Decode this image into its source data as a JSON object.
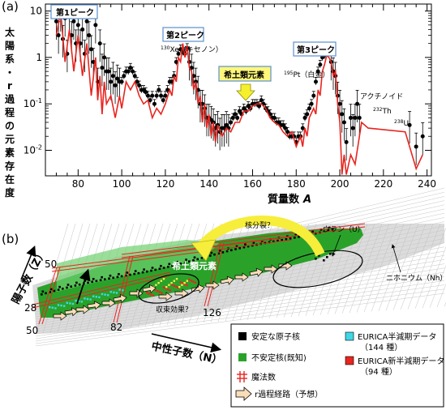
{
  "chart_data": [
    {
      "type": "scatter",
      "panel": "(a)",
      "xlabel": "質量数",
      "xlabel_var": "A",
      "ylabel": "太陽系・r過程の元素存在度",
      "xlim": [
        65,
        242
      ],
      "ylim_log10": [
        -2.55,
        1.15
      ],
      "log_y": true,
      "x_ticks": [
        80,
        100,
        120,
        140,
        160,
        180,
        200,
        220,
        240
      ],
      "y_ticks": [
        {
          "value": 10,
          "label": "10"
        },
        {
          "value": 1,
          "label": "1"
        },
        {
          "value": 0.1,
          "label": "10",
          "sup": "-1"
        },
        {
          "value": 0.01,
          "label": "10",
          "sup": "-2"
        }
      ],
      "grid": false,
      "series": [
        {
          "role": "observed",
          "marker": "black-dot-with-errorbars",
          "color": "#000000",
          "points": [
            [
              70,
              6
            ],
            [
              71,
              3
            ],
            [
              72,
              9
            ],
            [
              73,
              2.5
            ],
            [
              74,
              7
            ],
            [
              75,
              1.2
            ],
            [
              76,
              8
            ],
            [
              77,
              3
            ],
            [
              78,
              6
            ],
            [
              79,
              2
            ],
            [
              80,
              5
            ],
            [
              81,
              2
            ],
            [
              82,
              4
            ],
            [
              83,
              1.2
            ],
            [
              84,
              6
            ],
            [
              85,
              3
            ],
            [
              86,
              1.5
            ],
            [
              87,
              0.8
            ],
            [
              88,
              5
            ],
            [
              89,
              0.3
            ],
            [
              90,
              2
            ],
            [
              91,
              0.6
            ],
            [
              92,
              1
            ],
            [
              93,
              0.5
            ],
            [
              94,
              0.5
            ],
            [
              95,
              0.3
            ],
            [
              96,
              0.4
            ],
            [
              97,
              0.25
            ],
            [
              98,
              0.35
            ],
            [
              99,
              0.3
            ],
            [
              100,
              0.3
            ],
            [
              101,
              0.4
            ],
            [
              102,
              0.5
            ],
            [
              103,
              0.5
            ],
            [
              104,
              0.6
            ],
            [
              105,
              0.5
            ],
            [
              106,
              0.4
            ],
            [
              107,
              0.3
            ],
            [
              108,
              0.25
            ],
            [
              109,
              0.2
            ],
            [
              110,
              0.2
            ],
            [
              111,
              0.18
            ],
            [
              112,
              0.15
            ],
            [
              113,
              0.12
            ],
            [
              114,
              0.15
            ],
            [
              115,
              0.1
            ],
            [
              116,
              0.15
            ],
            [
              117,
              0.2
            ],
            [
              118,
              0.15
            ],
            [
              119,
              0.12
            ],
            [
              120,
              0.15
            ],
            [
              121,
              0.2
            ],
            [
              122,
              0.3
            ],
            [
              123,
              0.3
            ],
            [
              124,
              0.4
            ],
            [
              125,
              0.8
            ],
            [
              126,
              1.2
            ],
            [
              127,
              1.5
            ],
            [
              128,
              1.3
            ],
            [
              129,
              1.2
            ],
            [
              130,
              1.6
            ],
            [
              131,
              0.8
            ],
            [
              132,
              0.6
            ],
            [
              133,
              0.4
            ],
            [
              134,
              0.3
            ],
            [
              135,
              0.2
            ],
            [
              136,
              0.1
            ],
            [
              137,
              0.1
            ],
            [
              138,
              0.08
            ],
            [
              139,
              0.05
            ],
            [
              140,
              0.05
            ],
            [
              141,
              0.045
            ],
            [
              142,
              0.04
            ],
            [
              143,
              0.03
            ],
            [
              144,
              0.035
            ],
            [
              145,
              0.025
            ],
            [
              146,
              0.03
            ],
            [
              147,
              0.03
            ],
            [
              148,
              0.035
            ],
            [
              149,
              0.03
            ],
            [
              150,
              0.04
            ],
            [
              151,
              0.05
            ],
            [
              152,
              0.06
            ],
            [
              153,
              0.05
            ],
            [
              154,
              0.07
            ],
            [
              155,
              0.06
            ],
            [
              156,
              0.08
            ],
            [
              157,
              0.07
            ],
            [
              158,
              0.09
            ],
            [
              159,
              0.08
            ],
            [
              160,
              0.1
            ],
            [
              161,
              0.1
            ],
            [
              162,
              0.1
            ],
            [
              163,
              0.09
            ],
            [
              164,
              0.12
            ],
            [
              165,
              0.1
            ],
            [
              166,
              0.08
            ],
            [
              167,
              0.07
            ],
            [
              168,
              0.06
            ],
            [
              169,
              0.05
            ],
            [
              170,
              0.05
            ],
            [
              171,
              0.04
            ],
            [
              172,
              0.04
            ],
            [
              173,
              0.035
            ],
            [
              174,
              0.035
            ],
            [
              175,
              0.03
            ],
            [
              176,
              0.025
            ],
            [
              177,
              0.02
            ],
            [
              178,
              0.02
            ],
            [
              179,
              0.02
            ],
            [
              180,
              0.015
            ],
            [
              181,
              0.02
            ],
            [
              182,
              0.02
            ],
            [
              183,
              0.03
            ],
            [
              184,
              0.05
            ],
            [
              185,
              0.06
            ],
            [
              186,
              0.08
            ],
            [
              187,
              0.1
            ],
            [
              188,
              0.15
            ],
            [
              189,
              0.3
            ],
            [
              190,
              0.5
            ],
            [
              191,
              0.7
            ],
            [
              192,
              1.0
            ],
            [
              193,
              1.1
            ],
            [
              194,
              1.2
            ],
            [
              195,
              1.3
            ],
            [
              196,
              0.8
            ],
            [
              197,
              0.5
            ],
            [
              198,
              0.4
            ],
            [
              199,
              0.15
            ],
            [
              200,
              0.1
            ],
            [
              201,
              0.06
            ],
            [
              202,
              0.04
            ],
            [
              203,
              0.015
            ],
            [
              205,
              0.05
            ],
            [
              206,
              0.03
            ],
            [
              207,
              0.05
            ],
            [
              208,
              0.1
            ],
            [
              209,
              0.05
            ],
            [
              232,
              0.035
            ],
            [
              235,
              0.012
            ],
            [
              238,
              0.02
            ]
          ]
        },
        {
          "role": "model",
          "marker": "red-line",
          "color": "#e8251f",
          "points": [
            [
              70,
              3
            ],
            [
              72,
              10
            ],
            [
              74,
              0.8
            ],
            [
              76,
              4
            ],
            [
              78,
              0.5
            ],
            [
              80,
              3
            ],
            [
              82,
              0.4
            ],
            [
              84,
              2
            ],
            [
              86,
              0.15
            ],
            [
              88,
              1
            ],
            [
              89,
              0.12
            ],
            [
              90,
              0.4
            ],
            [
              91,
              0.06
            ],
            [
              92,
              0.3
            ],
            [
              93,
              0.1
            ],
            [
              95,
              0.15
            ],
            [
              97,
              0.05
            ],
            [
              99,
              0.15
            ],
            [
              100,
              0.08
            ],
            [
              102,
              0.3
            ],
            [
              104,
              0.2
            ],
            [
              106,
              0.3
            ],
            [
              108,
              0.15
            ],
            [
              110,
              0.1
            ],
            [
              112,
              0.12
            ],
            [
              114,
              0.05
            ],
            [
              116,
              0.08
            ],
            [
              118,
              0.06
            ],
            [
              120,
              0.1
            ],
            [
              122,
              0.2
            ],
            [
              123,
              0.15
            ],
            [
              124,
              0.4
            ],
            [
              125,
              0.3
            ],
            [
              126,
              1.0
            ],
            [
              127,
              0.8
            ],
            [
              128,
              2.0
            ],
            [
              129,
              1.0
            ],
            [
              130,
              1.8
            ],
            [
              131,
              0.6
            ],
            [
              132,
              0.5
            ],
            [
              133,
              0.2
            ],
            [
              134,
              0.3
            ],
            [
              135,
              0.1
            ],
            [
              136,
              0.15
            ],
            [
              137,
              0.04
            ],
            [
              138,
              0.1
            ],
            [
              139,
              0.03
            ],
            [
              140,
              0.06
            ],
            [
              141,
              0.02
            ],
            [
              142,
              0.04
            ],
            [
              143,
              0.015
            ],
            [
              144,
              0.035
            ],
            [
              146,
              0.02
            ],
            [
              148,
              0.03
            ],
            [
              150,
              0.025
            ],
            [
              152,
              0.04
            ],
            [
              154,
              0.04
            ],
            [
              156,
              0.07
            ],
            [
              158,
              0.07
            ],
            [
              160,
              0.09
            ],
            [
              162,
              0.1
            ],
            [
              164,
              0.1
            ],
            [
              166,
              0.08
            ],
            [
              168,
              0.05
            ],
            [
              170,
              0.04
            ],
            [
              172,
              0.035
            ],
            [
              174,
              0.025
            ],
            [
              176,
              0.02
            ],
            [
              178,
              0.025
            ],
            [
              180,
              0.012
            ],
            [
              182,
              0.02
            ],
            [
              183,
              0.012
            ],
            [
              184,
              0.03
            ],
            [
              185,
              0.02
            ],
            [
              186,
              0.05
            ],
            [
              188,
              0.08
            ],
            [
              189,
              0.06
            ],
            [
              190,
              0.2
            ],
            [
              191,
              0.15
            ],
            [
              192,
              0.5
            ],
            [
              193,
              0.7
            ],
            [
              194,
              1.1
            ],
            [
              195,
              1.0
            ],
            [
              196,
              0.8
            ],
            [
              197,
              0.4
            ],
            [
              198,
              0.5
            ],
            [
              199,
              0.1
            ],
            [
              200,
              0.04
            ],
            [
              201,
              0.003
            ],
            [
              202,
              0.008
            ],
            [
              203,
              0.003
            ],
            [
              205,
              0.008
            ],
            [
              207,
              0.005
            ],
            [
              210,
              0.04
            ],
            [
              213,
              0.03
            ],
            [
              230,
              0.025
            ],
            [
              235,
              0.004
            ],
            [
              238,
              0.008
            ]
          ]
        }
      ],
      "annotations": [
        {
          "text": "第1ピーク",
          "boxed": true
        },
        {
          "text": "第2ピーク",
          "boxed": true
        },
        {
          "text": "第3ピーク",
          "boxed": true
        },
        {
          "text": "希土類元素",
          "boxed": true,
          "highlight": "#fff77a",
          "arrow": "yellow-down"
        },
        {
          "sup": "130",
          "text": "Xe（キセノン）"
        },
        {
          "sup": "195",
          "text": "Pt（白金）"
        },
        {
          "text": "アクチノイド"
        },
        {
          "sup": "232",
          "text": "Th"
        },
        {
          "sup": "238",
          "text": "U"
        }
      ]
    },
    {
      "type": "diagram",
      "panel": "(b)",
      "xlabel": "中性子数（N）",
      "ylabel": "陽子数（Z）",
      "magic_labels_n": [
        "50",
        "82",
        "126"
      ],
      "magic_labels_z": [
        "28",
        "50"
      ],
      "annotations": [
        "核分裂？",
        "ウラン（U）",
        "ニホニウム（Nh）",
        "希土類元素",
        "収束効果？"
      ],
      "legend": [
        {
          "symbol": "black-square",
          "color": "#000000",
          "text": "安定な原子核"
        },
        {
          "symbol": "green-square",
          "color": "#2aa22a",
          "text": "不安定核(既知)"
        },
        {
          "symbol": "red-hash",
          "color": "#e8251f",
          "text": "魔法数"
        },
        {
          "symbol": "arrow",
          "color": "#f8ddb8",
          "text": "r過程経路（予想）"
        },
        {
          "symbol": "cyan-square",
          "color": "#3fd7e6",
          "text": "EURICA半減期データ",
          "count": "（144 種）"
        },
        {
          "symbol": "red-square",
          "color": "#e8251f",
          "text": "EURICA新半減期データ",
          "count": "（94 種）"
        }
      ]
    }
  ]
}
